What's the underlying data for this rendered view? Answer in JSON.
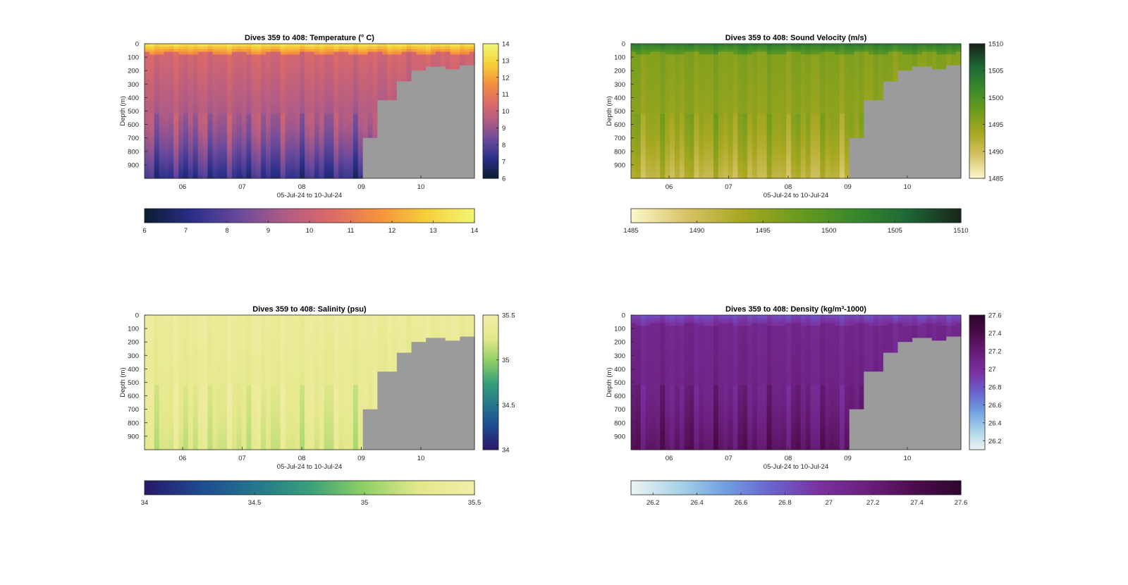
{
  "figure": {
    "common_xlabel": "05-Jul-24 to 10-Jul-24",
    "ylabel": "Depth (m)",
    "x_tick_labels": [
      "06",
      "07",
      "08",
      "09",
      "10"
    ],
    "y_tick_labels": [
      "0",
      "100",
      "200",
      "300",
      "400",
      "500",
      "600",
      "700",
      "800",
      "900"
    ]
  },
  "chart_data": [
    {
      "type": "heatmap",
      "title": "Dives 359 to 408: Temperature (° C)",
      "variable": "Temperature",
      "unit": "° C",
      "x_label": "05-Jul-24 to 10-Jul-24",
      "y_label": "Depth (m)",
      "x_range_days": [
        "05-Jul-24",
        "10-Jul-24"
      ],
      "x_ticks": [
        "06",
        "07",
        "08",
        "09",
        "10"
      ],
      "y_range": [
        0,
        1000
      ],
      "y_reversed": true,
      "y_ticks": [
        0,
        100,
        200,
        300,
        400,
        500,
        600,
        700,
        800,
        900
      ],
      "clim": [
        6,
        14
      ],
      "colorbar_right_ticks": [
        6,
        7,
        8,
        9,
        10,
        11,
        12,
        13,
        14
      ],
      "colorbar_bottom_ticks": [
        6,
        7,
        8,
        9,
        10,
        11,
        12,
        13,
        14
      ],
      "colormap": [
        "#0b1d33",
        "#2a2f8a",
        "#6a4a9c",
        "#b25c85",
        "#df6b67",
        "#f6923d",
        "#f5d039",
        "#f3f472"
      ],
      "profile": {
        "surface": 13.2,
        "mixed_layer_depth": 60,
        "top": 10.3,
        "mid": 9.4,
        "bottom": 7.2
      },
      "shallow_section": {
        "start_date": "09-Jul-24",
        "depth_m_approx": [
          700,
          420,
          280,
          200,
          170,
          190,
          160
        ]
      }
    },
    {
      "type": "heatmap",
      "title": "Dives 359 to 408: Sound Velocity (m/s)",
      "variable": "Sound Velocity",
      "unit": "m/s",
      "x_label": "05-Jul-24 to 10-Jul-24",
      "y_label": "Depth (m)",
      "x_range_days": [
        "05-Jul-24",
        "10-Jul-24"
      ],
      "x_ticks": [
        "06",
        "07",
        "08",
        "09",
        "10"
      ],
      "y_range": [
        0,
        1000
      ],
      "y_reversed": true,
      "y_ticks": [
        0,
        100,
        200,
        300,
        400,
        500,
        600,
        700,
        800,
        900
      ],
      "clim": [
        1485,
        1510
      ],
      "colorbar_right_ticks": [
        1485,
        1490,
        1495,
        1500,
        1505,
        1510
      ],
      "colorbar_bottom_ticks": [
        1485,
        1490,
        1495,
        1500,
        1505,
        1510
      ],
      "colormap": [
        "#fcf6c8",
        "#d6c266",
        "#a8a820",
        "#6e9b1e",
        "#3b8a2a",
        "#1f6a36",
        "#17261b"
      ],
      "profile": {
        "surface": 1503,
        "mixed_layer_depth": 60,
        "top": 1496,
        "mid": 1495,
        "bottom": 1491
      },
      "shallow_section": {
        "start_date": "09-Jul-24",
        "depth_m_approx": [
          700,
          420,
          280,
          200,
          170,
          190,
          160
        ]
      }
    },
    {
      "type": "heatmap",
      "title": "Dives 359 to 408: Salinity (psu)",
      "variable": "Salinity",
      "unit": "psu",
      "x_label": "05-Jul-24 to 10-Jul-24",
      "y_label": "Depth (m)",
      "x_range_days": [
        "05-Jul-24",
        "10-Jul-24"
      ],
      "x_ticks": [
        "06",
        "07",
        "08",
        "09",
        "10"
      ],
      "y_range": [
        0,
        1000
      ],
      "y_reversed": true,
      "y_ticks": [
        0,
        100,
        200,
        300,
        400,
        500,
        600,
        700,
        800,
        900
      ],
      "clim": [
        34,
        35.5
      ],
      "colorbar_right_ticks": [
        34,
        34.5,
        35,
        35.5
      ],
      "colorbar_bottom_ticks": [
        34,
        34.5,
        35,
        35.5
      ],
      "colormap": [
        "#28196b",
        "#1e4a90",
        "#24768d",
        "#37a07a",
        "#8fd066",
        "#e3e88a",
        "#f3eda8"
      ],
      "profile": {
        "surface": 35.38,
        "mixed_layer_depth": 60,
        "top": 35.37,
        "mid": 35.32,
        "bottom": 35.22
      },
      "shallow_section": {
        "start_date": "09-Jul-24",
        "depth_m_approx": [
          700,
          420,
          280,
          200,
          170,
          190,
          160
        ]
      }
    },
    {
      "type": "heatmap",
      "title": "Dives 359 to 408: Density (kg/m³-1000)",
      "variable": "Density",
      "unit": "kg/m³-1000",
      "x_label": "05-Jul-24 to 10-Jul-24",
      "y_label": "Depth (m)",
      "x_range_days": [
        "05-Jul-24",
        "10-Jul-24"
      ],
      "x_ticks": [
        "06",
        "07",
        "08",
        "09",
        "10"
      ],
      "y_range": [
        0,
        1000
      ],
      "y_reversed": true,
      "y_ticks": [
        0,
        100,
        200,
        300,
        400,
        500,
        600,
        700,
        800,
        900
      ],
      "clim": [
        26.1,
        27.6
      ],
      "colorbar_right_ticks": [
        26.2,
        26.4,
        26.6,
        26.8,
        27,
        27.2,
        27.4,
        27.6
      ],
      "colorbar_bottom_ticks": [
        26.2,
        26.4,
        26.6,
        26.8,
        27,
        27.2,
        27.4,
        27.6
      ],
      "colormap": [
        "#eaf2f2",
        "#a9d3e8",
        "#6f9fe0",
        "#6a62cf",
        "#7a32a0",
        "#6b1f7e",
        "#4f0d4f",
        "#2e0630"
      ],
      "profile": {
        "surface": 26.85,
        "mixed_layer_depth": 60,
        "top": 27.08,
        "mid": 27.12,
        "bottom": 27.3
      },
      "shallow_section": {
        "start_date": "09-Jul-24",
        "depth_m_approx": [
          700,
          420,
          280,
          200,
          170,
          190,
          160
        ]
      }
    }
  ]
}
